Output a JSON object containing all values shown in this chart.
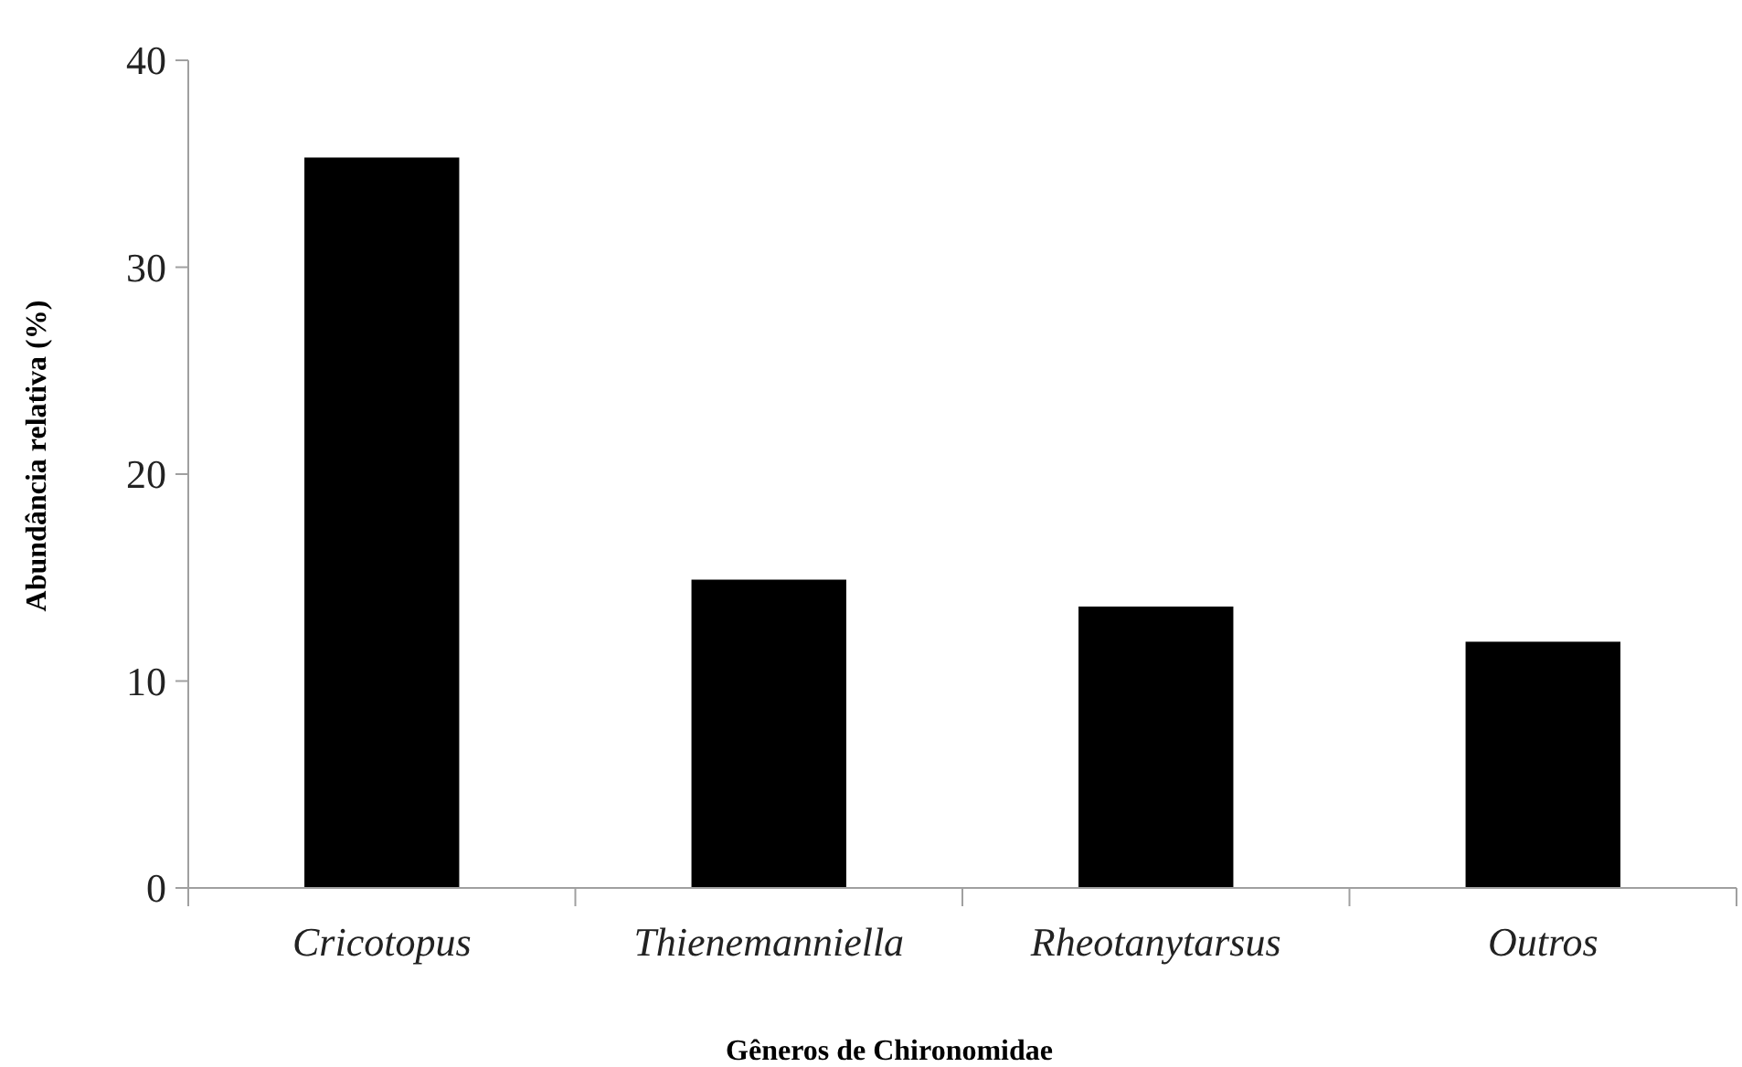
{
  "chart_data": {
    "type": "bar",
    "categories": [
      "Cricotopus",
      "Thienemanniella",
      "Rheotanytarsus",
      "Outros"
    ],
    "values": [
      35.3,
      14.9,
      13.6,
      11.9
    ],
    "color": "#000000",
    "xlabel": "Gêneros de Chironomidae",
    "ylabel": "Abundância relativa (%)",
    "ylim": [
      0,
      40
    ],
    "yticks": [
      0,
      10,
      20,
      30,
      40
    ],
    "grid": false
  }
}
